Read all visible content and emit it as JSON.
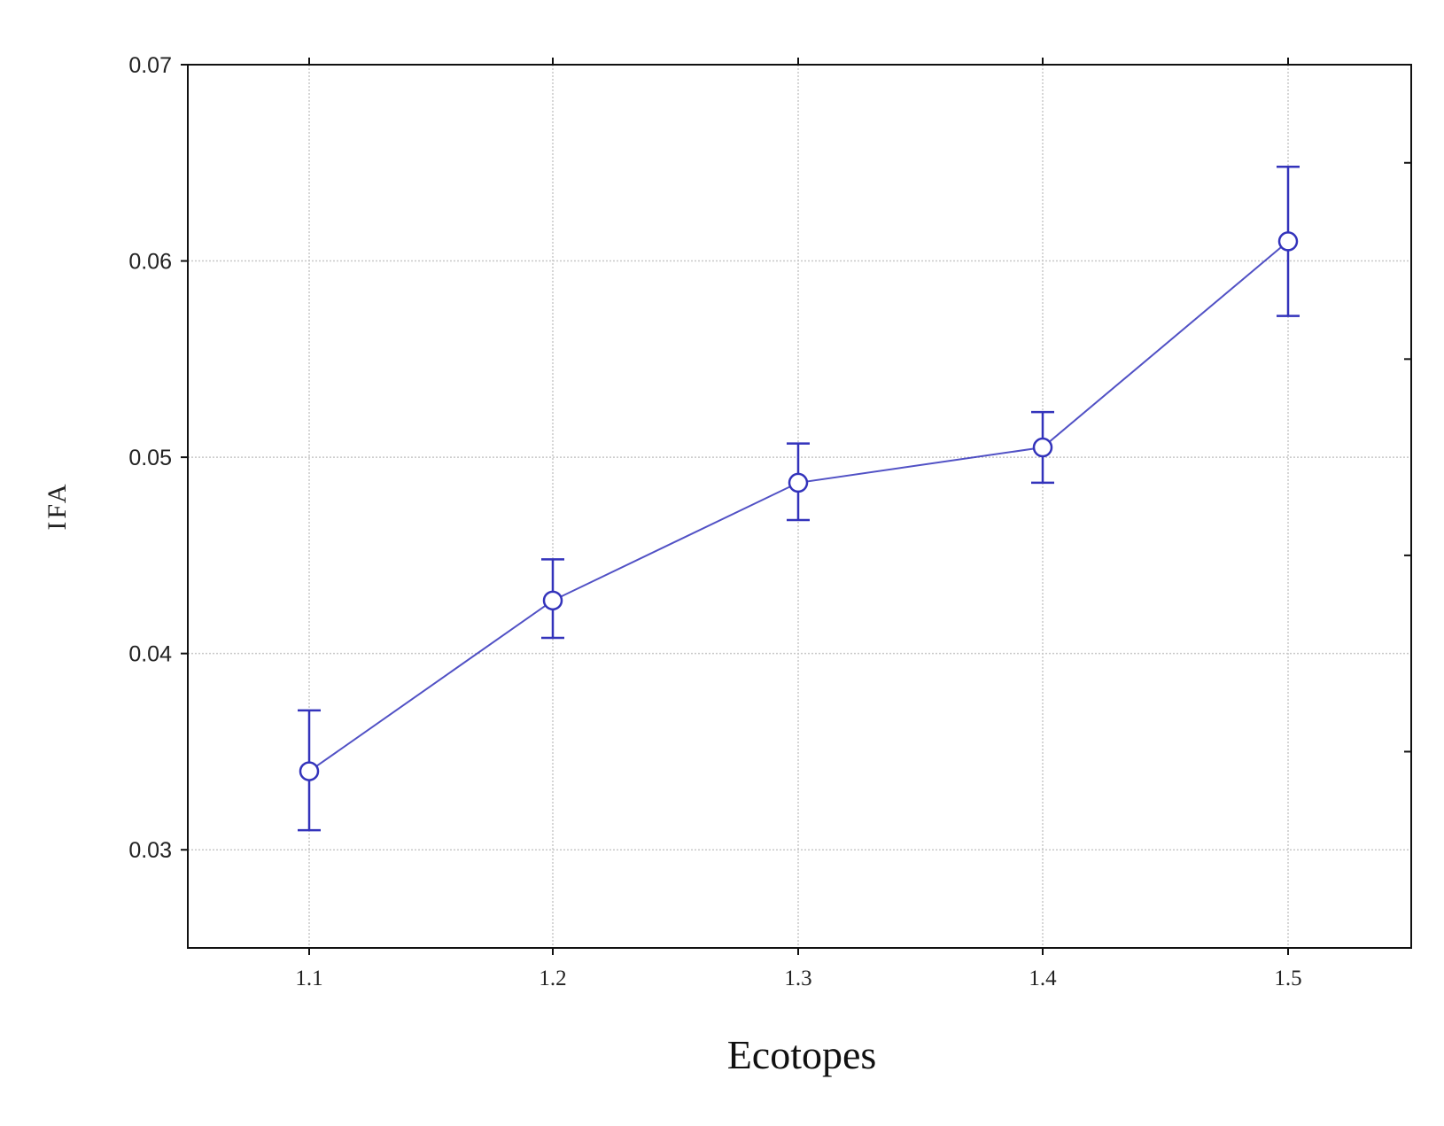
{
  "chart_data": {
    "type": "line",
    "xlabel": "Ecotopes",
    "ylabel": "IFA",
    "categories": [
      "1.1",
      "1.2",
      "1.3",
      "1.4",
      "1.5"
    ],
    "ylim": [
      0.025,
      0.07
    ],
    "yticks": [
      "0.03",
      "0.04",
      "0.05",
      "0.06",
      "0.07"
    ],
    "grid": true,
    "series": [
      {
        "values": [
          0.034,
          0.0427,
          0.0487,
          0.0505,
          0.061
        ],
        "error_low": [
          0.031,
          0.0408,
          0.0468,
          0.0487,
          0.0572
        ],
        "error_high": [
          0.0371,
          0.0448,
          0.0507,
          0.0523,
          0.0648
        ],
        "color": "#3333bb"
      }
    ]
  }
}
